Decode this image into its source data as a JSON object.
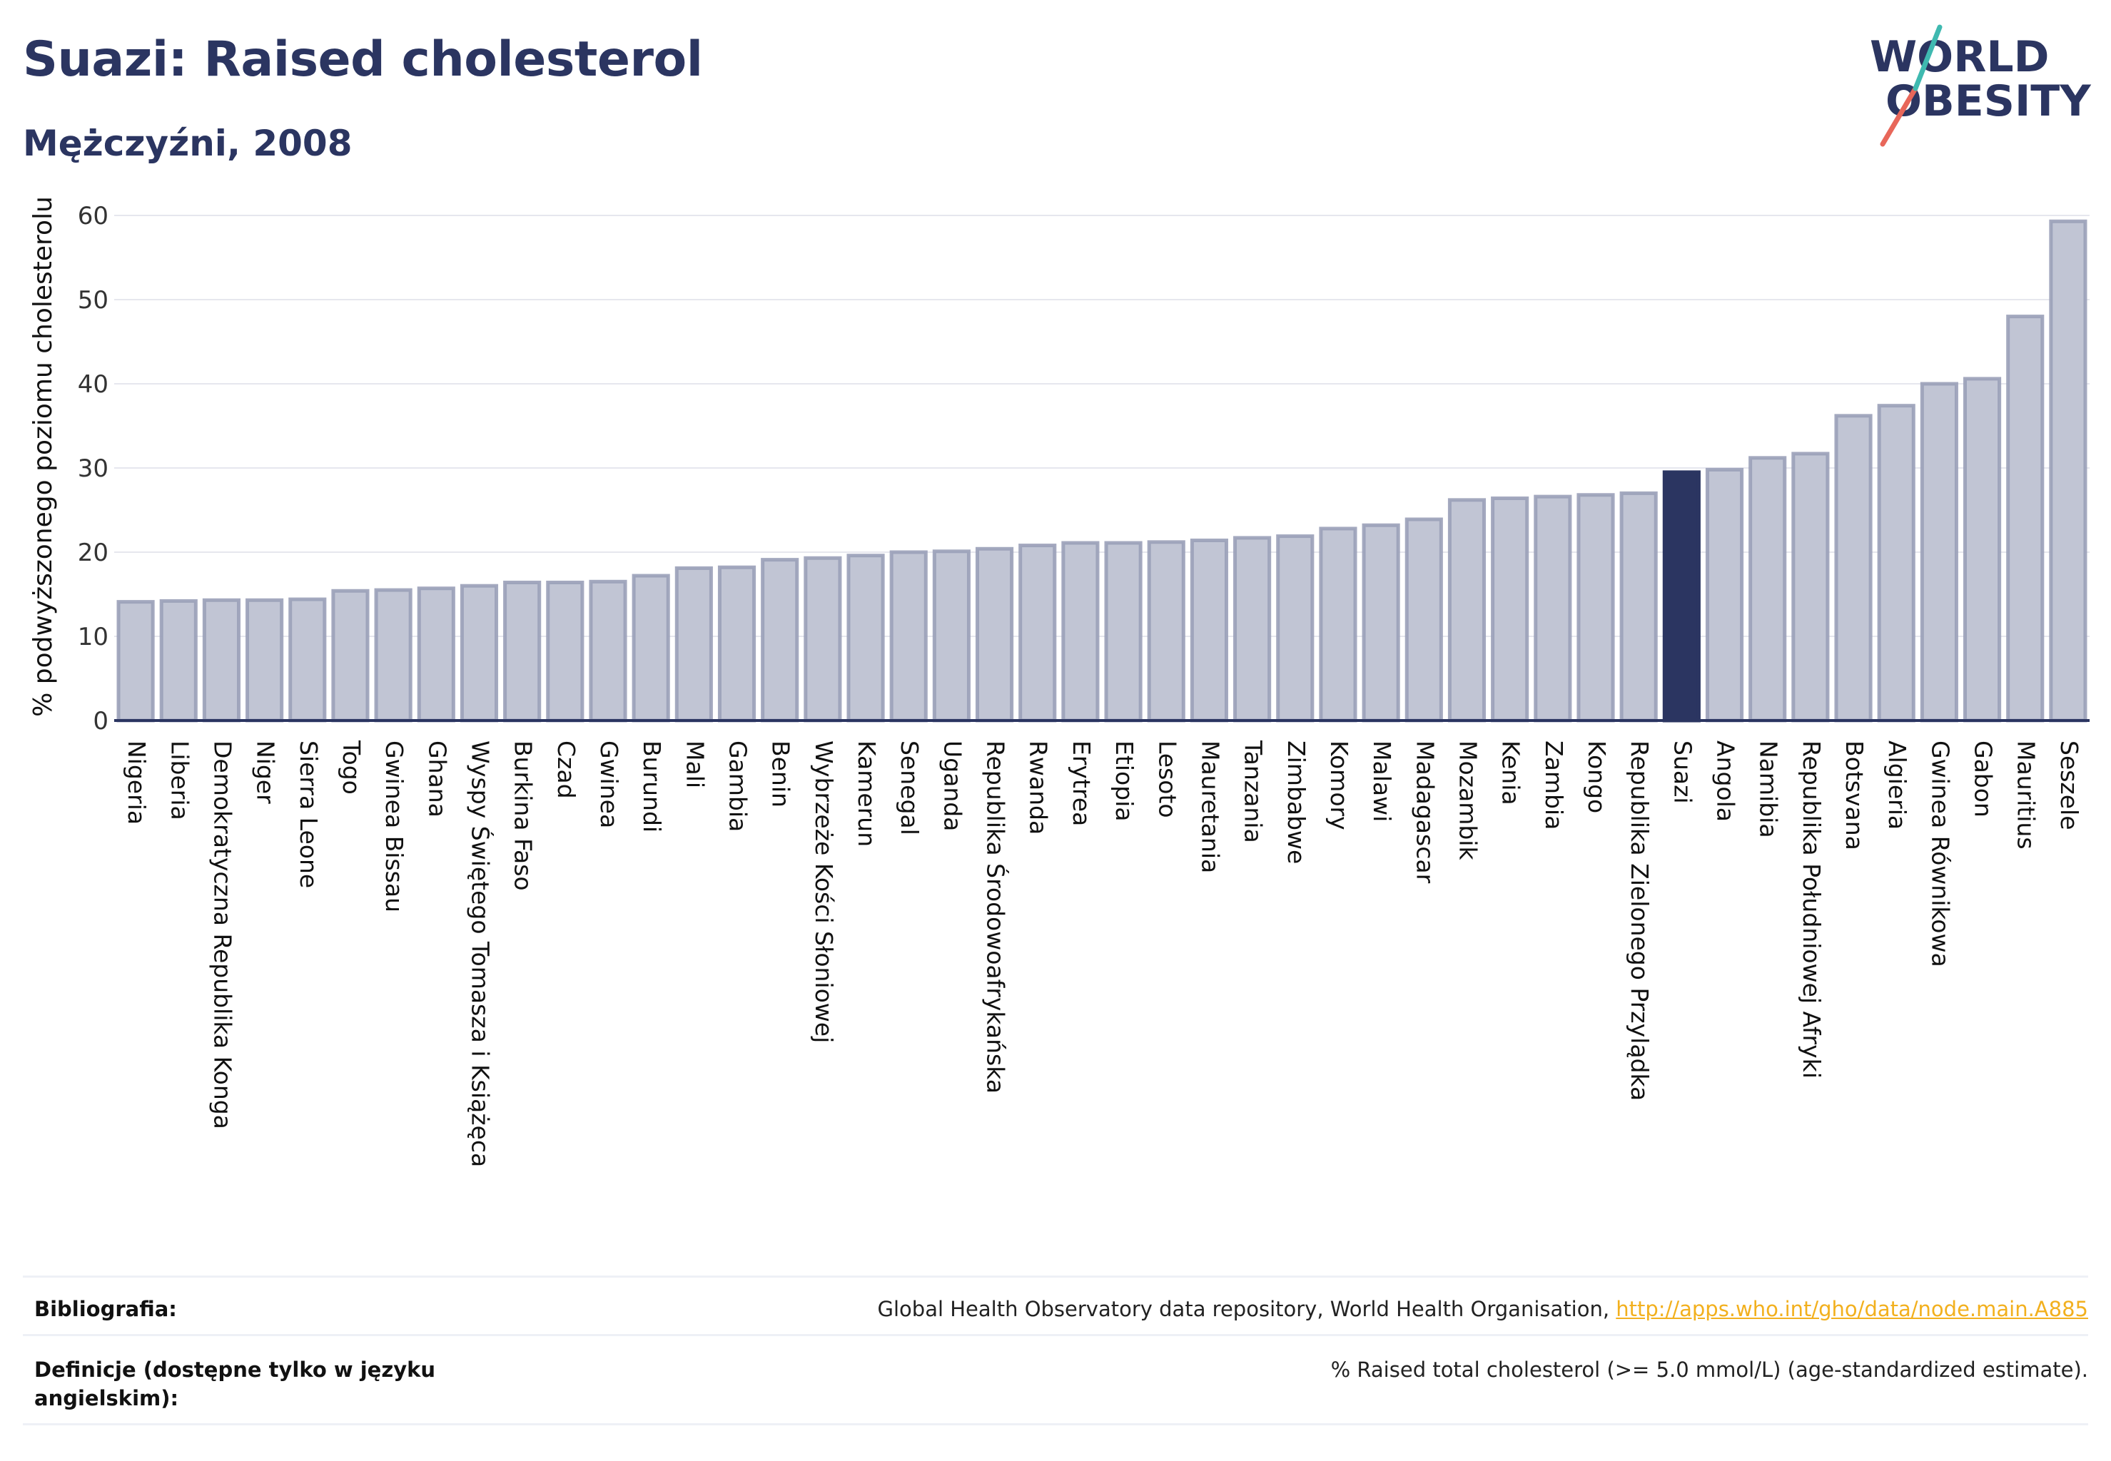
{
  "header": {
    "title": "Suazi: Raised cholesterol",
    "subtitle": "Mężczyźni, 2008"
  },
  "logo": {
    "line1": "WORLD",
    "line2": "OBESITY",
    "colors": {
      "text": "#2b3561",
      "slash_red": "#e8675a",
      "slash_teal": "#3fb9b0"
    }
  },
  "colors": {
    "bar_fill": "#c1c5d4",
    "bar_stroke": "#9aa0b8",
    "highlight": "#2b3561",
    "grid": "#e6e7ee",
    "axis": "#2b3561"
  },
  "chart_data": {
    "type": "bar",
    "ylabel": "% podwyższonego poziomu cholesterolu",
    "xlabel": "",
    "ylim": [
      0,
      63
    ],
    "yticks": [
      0,
      10,
      20,
      30,
      40,
      50,
      60
    ],
    "grid": true,
    "highlight": "Suazi",
    "categories": [
      "Nigeria",
      "Liberia",
      "Demokratyczna Republika Konga",
      "Niger",
      "Sierra Leone",
      "Togo",
      "Gwinea Bissau",
      "Ghana",
      "Wyspy Świętego Tomasza i Książęca",
      "Burkina Faso",
      "Czad",
      "Gwinea",
      "Burundi",
      "Mali",
      "Gambia",
      "Benin",
      "Wybrzeże Kości Słoniowej",
      "Kamerun",
      "Senegal",
      "Uganda",
      "Republika Środowoafrykańska",
      "Rwanda",
      "Erytrea",
      "Etiopia",
      "Lesoto",
      "Mauretania",
      "Tanzania",
      "Zimbabwe",
      "Komory",
      "Malawi",
      "Madagascar",
      "Mozambik",
      "Kenia",
      "Zambia",
      "Kongo",
      "Republika Zielonego Przylądka",
      "Suazi",
      "Angola",
      "Namibia",
      "Republika Południowej Afryki",
      "Botsvana",
      "Algieria",
      "Gwinea Równikowa",
      "Gabon",
      "Mauritius",
      "Seszele"
    ],
    "values": [
      14.1,
      14.2,
      14.3,
      14.3,
      14.4,
      15.4,
      15.5,
      15.7,
      16.0,
      16.4,
      16.4,
      16.5,
      17.2,
      18.1,
      18.2,
      19.1,
      19.3,
      19.6,
      20.0,
      20.1,
      20.4,
      20.8,
      21.1,
      21.1,
      21.2,
      21.4,
      21.7,
      21.9,
      22.8,
      23.2,
      23.9,
      26.2,
      26.4,
      26.6,
      26.8,
      27.0,
      29.5,
      29.8,
      31.2,
      31.7,
      36.2,
      37.4,
      40.0,
      40.6,
      48.0,
      59.3
    ]
  },
  "footer": {
    "bibliography_label": "Bibliografia:",
    "bibliography_text": "Global Health Observatory data repository, World Health Organisation, ",
    "bibliography_link": "http://apps.who.int/gho/data/node.main.A885",
    "definitions_label": "Definicje (dostępne tylko w języku angielskim):",
    "definitions_text": "% Raised total cholesterol (>= 5.0 mmol/L) (age-standardized estimate)."
  }
}
